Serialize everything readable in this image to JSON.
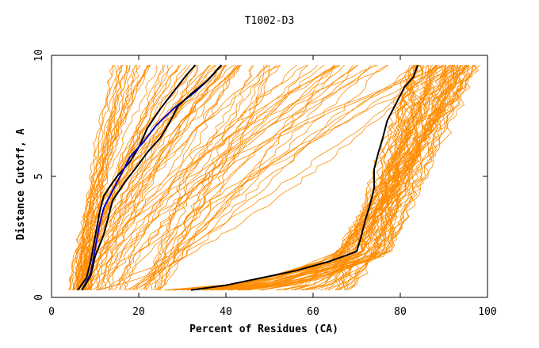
{
  "chart_data": {
    "type": "line",
    "title": "T1002-D3",
    "xlabel": "Percent of Residues (CA)",
    "ylabel": "Distance Cutoff, A",
    "xlim": [
      0,
      100
    ],
    "ylim": [
      0,
      10
    ],
    "x_ticks": [
      "0",
      "20",
      "40",
      "60",
      "80",
      "100"
    ],
    "y_ticks": [
      "0",
      "5",
      "10"
    ],
    "grid": false,
    "legend": "none",
    "colors": {
      "background_models": "#ff8c00",
      "highlight_black": "#000000",
      "highlight_blue": "#0000cc",
      "axis": "#000000"
    },
    "background_curves_count": 160,
    "highlighted_series": [
      {
        "color": "#000000",
        "points": [
          [
            6,
            0.3
          ],
          [
            8,
            0.8
          ],
          [
            9,
            1.5
          ],
          [
            10,
            2.5
          ],
          [
            11,
            3.5
          ],
          [
            12,
            4.2
          ],
          [
            15,
            5.0
          ],
          [
            18,
            5.6
          ],
          [
            20,
            6.2
          ],
          [
            22,
            7.0
          ],
          [
            25,
            7.8
          ],
          [
            28,
            8.5
          ],
          [
            31,
            9.2
          ],
          [
            33,
            9.6
          ]
        ]
      },
      {
        "color": "#0000cc",
        "points": [
          [
            7,
            0.3
          ],
          [
            9,
            1.0
          ],
          [
            10,
            2.0
          ],
          [
            11,
            3.0
          ],
          [
            12,
            3.7
          ],
          [
            14,
            4.4
          ],
          [
            16,
            5.1
          ],
          [
            18,
            5.8
          ],
          [
            21,
            6.4
          ],
          [
            24,
            7.1
          ],
          [
            28,
            7.8
          ],
          [
            33,
            8.5
          ],
          [
            36,
            9.0
          ],
          [
            39,
            9.6
          ]
        ]
      },
      {
        "color": "#000000",
        "points": [
          [
            7,
            0.3
          ],
          [
            9,
            0.9
          ],
          [
            10,
            1.7
          ],
          [
            12,
            2.6
          ],
          [
            13,
            3.3
          ],
          [
            14,
            4.0
          ],
          [
            17,
            4.8
          ],
          [
            20,
            5.5
          ],
          [
            22,
            6.0
          ],
          [
            25,
            6.6
          ],
          [
            27,
            7.2
          ],
          [
            29,
            7.9
          ],
          [
            32,
            8.4
          ],
          [
            36,
            9.0
          ],
          [
            39,
            9.6
          ]
        ]
      },
      {
        "color": "#000000",
        "points": [
          [
            32,
            0.3
          ],
          [
            40,
            0.5
          ],
          [
            48,
            0.8
          ],
          [
            56,
            1.1
          ],
          [
            64,
            1.5
          ],
          [
            70,
            1.9
          ],
          [
            71,
            2.5
          ],
          [
            72,
            3.2
          ],
          [
            73,
            3.8
          ],
          [
            74,
            4.5
          ],
          [
            74,
            5.3
          ],
          [
            75,
            6.0
          ],
          [
            76,
            6.6
          ],
          [
            77,
            7.3
          ],
          [
            79,
            8.0
          ],
          [
            81,
            8.7
          ],
          [
            83,
            9.1
          ],
          [
            84,
            9.6
          ]
        ]
      }
    ]
  }
}
